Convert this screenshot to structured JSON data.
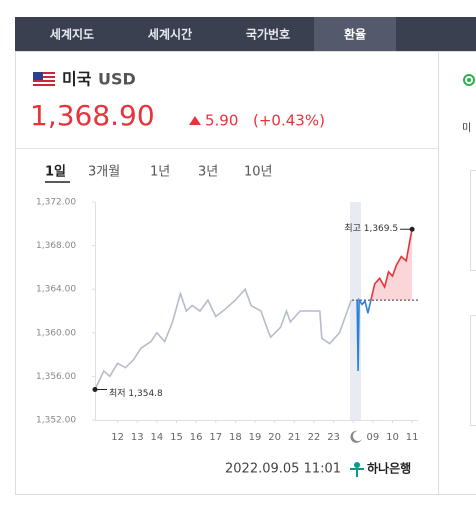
{
  "tabs": [
    "세계지도",
    "세계시간",
    "국가번호",
    "환율"
  ],
  "currency": {
    "name": "미국",
    "code": "USD"
  },
  "rate": {
    "value": "1,368.90",
    "change": "5.90",
    "percent": "(+0.43%)"
  },
  "periods": [
    "1일",
    "3개월",
    "1년",
    "3년",
    "10년"
  ],
  "side_label": "미",
  "chart": {
    "type": "line",
    "xlim": [
      -0.15,
      16.3
    ],
    "ylim": [
      1352,
      1372
    ],
    "yticks": [
      {
        "value": 1372,
        "label": "1,372.00"
      },
      {
        "value": 1368,
        "label": "1,368.00"
      },
      {
        "value": 1364,
        "label": "1,364.00"
      },
      {
        "value": 1360,
        "label": "1,360.00"
      },
      {
        "value": 1356,
        "label": "1,356.00"
      },
      {
        "value": 1352,
        "label": "1,352.00"
      }
    ],
    "xticks": [
      {
        "value": 1,
        "label": "12"
      },
      {
        "value": 2,
        "label": "13"
      },
      {
        "value": 3,
        "label": "14"
      },
      {
        "value": 4,
        "label": "15"
      },
      {
        "value": 5,
        "label": "16"
      },
      {
        "value": 6,
        "label": "17"
      },
      {
        "value": 7,
        "label": "18"
      },
      {
        "value": 8,
        "label": "19"
      },
      {
        "value": 9,
        "label": "20"
      },
      {
        "value": 10,
        "label": "21"
      },
      {
        "value": 11,
        "label": "22"
      },
      {
        "value": 12,
        "label": "23"
      },
      {
        "value": 13,
        "label": null
      },
      {
        "value": 14,
        "label": "09"
      },
      {
        "value": 15,
        "label": "10"
      },
      {
        "value": 16,
        "label": "11"
      }
    ],
    "baseline": 1363,
    "series": [
      {
        "color": "#b6bccb",
        "x": [
          -0.15,
          0.3,
          0.6,
          1,
          1.4,
          1.8,
          2.2,
          2.7,
          3,
          3.4,
          3.8,
          4.2,
          4.5,
          4.8,
          5.2,
          5.6,
          6,
          6.5,
          7,
          7.5,
          7.8,
          8.3,
          8.7,
          8.8,
          9.3,
          9.6,
          9.8,
          10.3,
          11.3,
          11.4,
          11.8,
          12.3,
          12.9
        ],
        "values": [
          1354.8,
          1356.5,
          1356,
          1357.2,
          1356.8,
          1357.5,
          1358.6,
          1359.2,
          1360,
          1359.2,
          1361,
          1363.6,
          1362,
          1362.5,
          1362,
          1363,
          1361.5,
          1362.2,
          1363,
          1364,
          1362.5,
          1362,
          1360,
          1359.6,
          1360.5,
          1362,
          1361,
          1362,
          1362,
          1359.5,
          1359,
          1360,
          1363
        ]
      },
      {
        "color": "#2b7fe0",
        "x": [
          13.2,
          13.25,
          13.3,
          13.45,
          13.6,
          13.75,
          13.9
        ],
        "values": [
          1363,
          1356.5,
          1363,
          1362.6,
          1362.9,
          1361.8,
          1363
        ]
      },
      {
        "color": "#e8333a",
        "x": [
          13.9,
          14.1,
          14.35,
          14.6,
          14.8,
          15,
          15.2,
          15.45,
          15.7,
          15.9,
          16
        ],
        "values": [
          1363,
          1364.5,
          1365,
          1364.2,
          1365.6,
          1365.2,
          1366.2,
          1367,
          1366.6,
          1368.6,
          1369.5
        ]
      }
    ],
    "high_label": "최고 1,369.5",
    "low_label": "최저 1,354.8"
  },
  "timestamp": "2022.09.05 11:01",
  "bank": "하나은행"
}
